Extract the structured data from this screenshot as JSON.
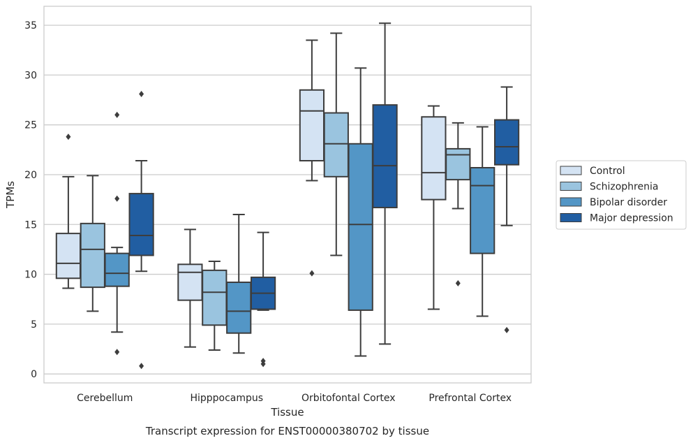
{
  "caption": "Transcript expression for ENST00000380702 by tissue",
  "chart_data": {
    "type": "box",
    "title": "",
    "xlabel": "Tissue",
    "ylabel": "TPMs",
    "ylim": [
      -0.9,
      36.9
    ],
    "yticks": [
      0,
      5,
      10,
      15,
      20,
      25,
      30,
      35
    ],
    "grid": "horizontal",
    "legend_position": "right",
    "categories": [
      "Cerebellum",
      "Hipppocampus",
      "Orbitofontal Cortex",
      "Prefrontal Cortex"
    ],
    "series": [
      {
        "name": "Control",
        "color": "#d4e3f3",
        "boxes": [
          {
            "whisker_low": 8.6,
            "q1": 9.6,
            "median": 11.1,
            "q3": 14.1,
            "whisker_high": 19.8,
            "outliers": [
              23.8
            ]
          },
          {
            "whisker_low": 2.7,
            "q1": 7.4,
            "median": 10.2,
            "q3": 11.0,
            "whisker_high": 14.5,
            "outliers": []
          },
          {
            "whisker_low": 19.4,
            "q1": 21.4,
            "median": 26.4,
            "q3": 28.5,
            "whisker_high": 33.5,
            "outliers": [
              10.1
            ]
          },
          {
            "whisker_low": 6.5,
            "q1": 17.5,
            "median": 20.2,
            "q3": 25.8,
            "whisker_high": 26.9,
            "outliers": []
          }
        ]
      },
      {
        "name": "Schizophrenia",
        "color": "#9ac4df",
        "boxes": [
          {
            "whisker_low": 6.3,
            "q1": 8.7,
            "median": 12.5,
            "q3": 15.1,
            "whisker_high": 19.9,
            "outliers": []
          },
          {
            "whisker_low": 2.4,
            "q1": 4.9,
            "median": 8.2,
            "q3": 10.4,
            "whisker_high": 11.3,
            "outliers": []
          },
          {
            "whisker_low": 11.9,
            "q1": 19.8,
            "median": 23.1,
            "q3": 26.2,
            "whisker_high": 34.2,
            "outliers": []
          },
          {
            "whisker_low": 16.6,
            "q1": 19.5,
            "median": 22.0,
            "q3": 22.6,
            "whisker_high": 25.2,
            "outliers": [
              9.1
            ]
          }
        ]
      },
      {
        "name": "Bipolar disorder",
        "color": "#5396c6",
        "boxes": [
          {
            "whisker_low": 4.2,
            "q1": 8.8,
            "median": 10.1,
            "q3": 12.1,
            "whisker_high": 12.7,
            "outliers": [
              26.0,
              17.6,
              2.2
            ]
          },
          {
            "whisker_low": 2.1,
            "q1": 4.1,
            "median": 6.3,
            "q3": 9.2,
            "whisker_high": 16.0,
            "outliers": []
          },
          {
            "whisker_low": 1.8,
            "q1": 6.4,
            "median": 15.0,
            "q3": 23.1,
            "whisker_high": 30.7,
            "outliers": []
          },
          {
            "whisker_low": 5.8,
            "q1": 12.1,
            "median": 18.9,
            "q3": 20.7,
            "whisker_high": 24.8,
            "outliers": []
          }
        ]
      },
      {
        "name": "Major depression",
        "color": "#215ea2",
        "boxes": [
          {
            "whisker_low": 10.3,
            "q1": 11.9,
            "median": 13.9,
            "q3": 18.1,
            "whisker_high": 21.4,
            "outliers": [
              28.1,
              0.8
            ]
          },
          {
            "whisker_low": 6.4,
            "q1": 6.5,
            "median": 8.1,
            "q3": 9.7,
            "whisker_high": 14.2,
            "outliers": [
              1.3,
              1.0
            ]
          },
          {
            "whisker_low": 3.0,
            "q1": 16.7,
            "median": 20.9,
            "q3": 27.0,
            "whisker_high": 35.2,
            "outliers": []
          },
          {
            "whisker_low": 14.9,
            "q1": 21.0,
            "median": 22.8,
            "q3": 25.5,
            "whisker_high": 28.8,
            "outliers": [
              4.4
            ]
          }
        ]
      }
    ]
  }
}
